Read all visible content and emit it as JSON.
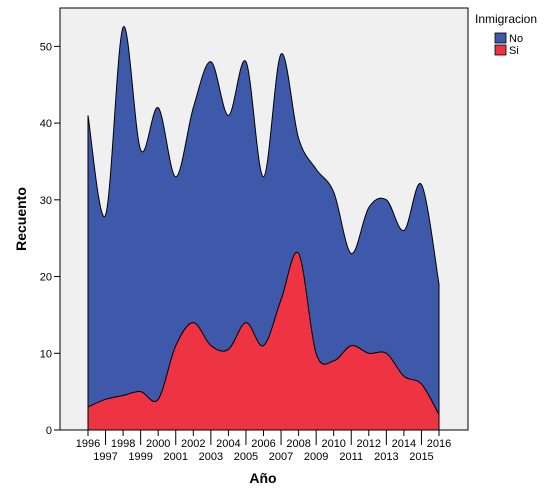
{
  "chart_data": {
    "type": "area",
    "stacked": true,
    "xlabel": "Año",
    "ylabel": "Recuento",
    "ylim": [
      0,
      55
    ],
    "yticks": [
      0,
      10,
      20,
      30,
      40,
      50
    ],
    "x": [
      "1996",
      "1997",
      "1998",
      "1999",
      "2000",
      "2001",
      "2002",
      "2003",
      "2004",
      "2005",
      "2006",
      "2007",
      "2008",
      "2009",
      "2010",
      "2011",
      "2012",
      "2013",
      "2014",
      "2015",
      "2016"
    ],
    "series": [
      {
        "name": "Si",
        "color": "#ee3342",
        "values": [
          3,
          4,
          4.5,
          5,
          4,
          11,
          14,
          11,
          10.5,
          14,
          11,
          17,
          23,
          10,
          9,
          11,
          10,
          10,
          7,
          6,
          2
        ]
      },
      {
        "name": "No",
        "color": "#3f59aa",
        "values": [
          38,
          24,
          48,
          31.5,
          38,
          22,
          28,
          37,
          30.5,
          34,
          22,
          32,
          15,
          24,
          22,
          12,
          19,
          20,
          19,
          26,
          17
        ]
      }
    ],
    "legend": {
      "title": "Inmigracion",
      "position": "top-right",
      "items": [
        "No",
        "Si"
      ]
    },
    "plot_background": "#f0f0f0"
  }
}
